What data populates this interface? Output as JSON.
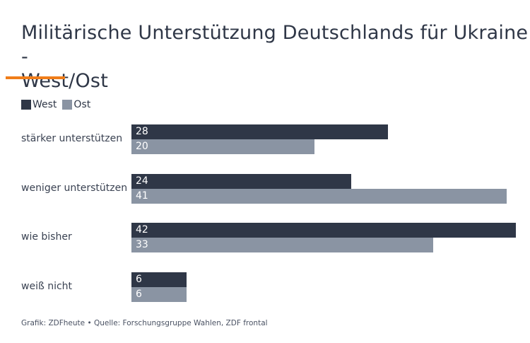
{
  "chart_data": {
    "type": "bar",
    "orientation": "horizontal",
    "title": "Militärische Unterstützung Deutschlands für Ukraine - West/Ost",
    "categories": [
      "stärker unterstützen",
      "weniger unterstützen",
      "wie bisher",
      "weiß nicht"
    ],
    "series": [
      {
        "name": "West",
        "color": "#2f3747",
        "values": [
          28,
          24,
          42,
          6
        ]
      },
      {
        "name": "Ost",
        "color": "#8a94a3",
        "values": [
          20,
          41,
          33,
          6
        ]
      }
    ],
    "xlabel": "",
    "ylabel": "",
    "xlim": [
      0,
      42
    ],
    "grid": false,
    "legend": "top-left",
    "data_labels": true
  },
  "title_line1": "Militärische Unterstützung Deutschlands für Ukraine -",
  "title_line2": "West/Ost",
  "accent_color": "#f07d1a",
  "source": "Grafik: ZDFheute • Quelle: Forschungsgruppe Wahlen, ZDF frontal"
}
